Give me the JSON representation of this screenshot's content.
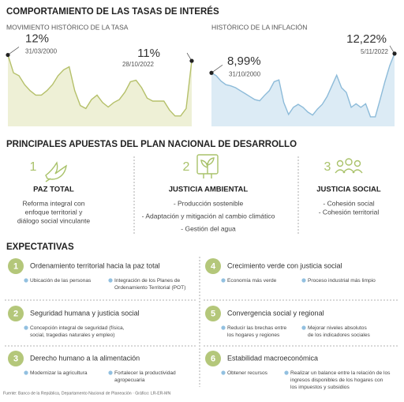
{
  "title": "COMPORTAMIENTO DE LAS TASAS DE INTERÉS",
  "chart_data": [
    {
      "type": "area",
      "title": "MOVIMIENTO HISTÓRICO DE LA TASA",
      "values": [
        12,
        9,
        8.5,
        7,
        6,
        5.25,
        5.25,
        6,
        7,
        8.5,
        9.5,
        10,
        6,
        3.5,
        3,
        4.5,
        5.25,
        4,
        3.25,
        4,
        4.5,
        5.75,
        7.5,
        7.75,
        6.5,
        4.75,
        4.25,
        4.25,
        4.25,
        2.75,
        1.75,
        1.75,
        3,
        11
      ],
      "value_labels": [
        "12%",
        null,
        null,
        null,
        null,
        null,
        null,
        null,
        null,
        null,
        null,
        null,
        null,
        null,
        null,
        null,
        null,
        null,
        null,
        null,
        null,
        null,
        null,
        null,
        null,
        null,
        null,
        null,
        null,
        null,
        null,
        null,
        null,
        "11%"
      ],
      "date_labels": [
        "31/03/2000",
        null,
        null,
        null,
        null,
        null,
        null,
        null,
        null,
        null,
        null,
        null,
        null,
        null,
        null,
        null,
        null,
        null,
        null,
        null,
        null,
        null,
        null,
        null,
        null,
        null,
        null,
        null,
        null,
        null,
        null,
        null,
        null,
        "28/10/2022"
      ],
      "ylim": [
        0,
        13
      ],
      "color": "#b5c06a",
      "fill": "#eef0d6"
    },
    {
      "type": "area",
      "title": "HISTÓRICO DE LA INFLACIÓN",
      "values": [
        8.99,
        8.5,
        7.6,
        7,
        6.8,
        6.5,
        6,
        5.5,
        5,
        4.5,
        4.3,
        5.2,
        6,
        7.5,
        7.8,
        4,
        2,
        3.2,
        3.7,
        3.2,
        2.4,
        1.9,
        2.9,
        3.7,
        5,
        6.8,
        8.6,
        6.5,
        5.7,
        3.2,
        3.8,
        3.2,
        3.8,
        1.6,
        1.6,
        4.5,
        7.5,
        10.2,
        12.22
      ],
      "value_labels": [
        "8,99%",
        null,
        null,
        null,
        null,
        null,
        null,
        null,
        null,
        null,
        null,
        null,
        null,
        null,
        null,
        null,
        null,
        null,
        null,
        null,
        null,
        null,
        null,
        null,
        null,
        null,
        null,
        null,
        null,
        null,
        null,
        null,
        null,
        null,
        null,
        null,
        null,
        null,
        "12,22%"
      ],
      "date_labels": [
        "31/10/2000",
        null,
        null,
        null,
        null,
        null,
        null,
        null,
        null,
        null,
        null,
        null,
        null,
        null,
        null,
        null,
        null,
        null,
        null,
        null,
        null,
        null,
        null,
        null,
        null,
        null,
        null,
        null,
        null,
        null,
        null,
        null,
        null,
        null,
        null,
        null,
        null,
        null,
        "5/11/2022"
      ],
      "ylim": [
        0,
        13
      ],
      "color": "#8dbbd9",
      "fill": "#dcebf5"
    }
  ],
  "plan": {
    "title": "PRINCIPALES APUESTAS DEL PLAN NACIONAL DE DESARROLLO",
    "items": [
      {
        "number": "1",
        "title": "PAZ TOTAL",
        "lines": [
          "Reforma integral con",
          "enfoque territorial y",
          "diálogo social vinculante"
        ]
      },
      {
        "number": "2",
        "title": "JUSTICIA AMBIENTAL",
        "lines": [
          "- Producción sostenible",
          "- Adaptación y mitigación al cambio climático",
          "- Gestión del agua"
        ]
      },
      {
        "number": "3",
        "title": "JUSTICIA SOCIAL",
        "lines": [
          "- Cohesión social",
          "- Cohesión territorial"
        ]
      }
    ]
  },
  "expectativas": {
    "title": "EXPECTATIVAS",
    "items": [
      {
        "number": "1",
        "title": "Ordenamiento territorial hacia la paz total",
        "bullets": [
          [
            "Ubicación de las personas"
          ],
          [
            "Integración de los Planes de",
            "Ordenamiento Territorial (POT)"
          ]
        ]
      },
      {
        "number": "2",
        "title": "Seguridad humana y justicia social",
        "bullets": [
          [
            "Concepción integral de seguridad (física,",
            "social, tragedias naturales y empleo)"
          ]
        ]
      },
      {
        "number": "3",
        "title": "Derecho humano a la alimentación",
        "bullets": [
          [
            "Modernizar la agricultura"
          ],
          [
            "Fortalecer la productividad",
            "agropecuaria"
          ]
        ]
      },
      {
        "number": "4",
        "title": "Crecimiento verde con justicia social",
        "bullets": [
          [
            "Economía más verde"
          ],
          [
            "Proceso industrial más limpio"
          ]
        ]
      },
      {
        "number": "5",
        "title": "Convergencia social y regional",
        "bullets": [
          [
            "Reducir las brechas entre",
            "los hogares y regiones"
          ],
          [
            "Mejorar niveles absolutos",
            "de los indicadores sociales"
          ]
        ]
      },
      {
        "number": "6",
        "title": "Estabilidad macroeconómica",
        "bullets": [
          [
            "Obtener recursos"
          ],
          [
            "Realizar un balance entre la relación de los",
            "ingresos disponibles de los hogares con",
            "los impuestos y subsidios"
          ]
        ]
      }
    ]
  },
  "source": "Fuente: Banco de la República, Departamento Nacional de Planeación · Gráfico: LR-ER-MN"
}
